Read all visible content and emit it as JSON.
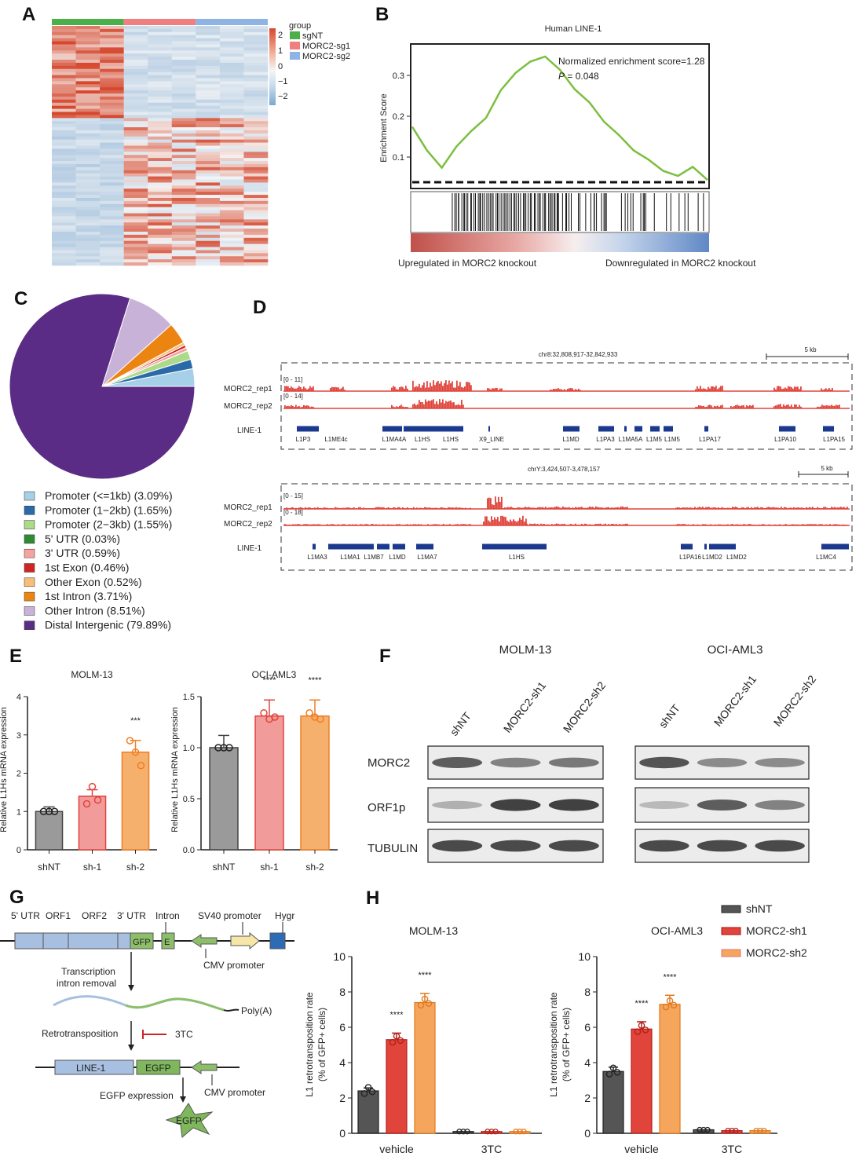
{
  "panel_labels": {
    "A": "A",
    "B": "B",
    "C": "C",
    "D": "D",
    "E": "E",
    "F": "F",
    "G": "G",
    "H": "H"
  },
  "colors": {
    "sgNT": "#4daf4a",
    "sg1": "#f08080",
    "sg2": "#8fb4e3",
    "red": "#e0443b",
    "purple": "#5b2c86",
    "green_line": "#7cbf3f",
    "grey": "#8c8c8c",
    "pink": "#f28b8b",
    "orange": "#f6a55c",
    "black_bar": "#555555",
    "track_blue": "#1b3a8f"
  },
  "panelA": {
    "legend_title": "group",
    "groups": [
      {
        "name": "sgNT",
        "color": "#4daf4a"
      },
      {
        "name": "MORC2-sg1",
        "color": "#f08080"
      },
      {
        "name": "MORC2-sg2",
        "color": "#8fb4e3"
      }
    ],
    "scale_ticks": [
      "2",
      "1",
      "0",
      "−1",
      "−2"
    ]
  },
  "panelB": {
    "title": "Human LINE-1",
    "ylabel": "Enrichment Score",
    "yticks": [
      "0.3",
      "0.2",
      "0.1"
    ],
    "nes_text": "Normalized enrichment score=1.28",
    "p_label": "P",
    "p_value": " = 0.048",
    "left_label": "Upregulated in MORC2 knockout",
    "right_label": "Downregulated in MORC2 knockout"
  },
  "chart_data": [
    {
      "type": "line",
      "panel": "B",
      "title": "Human LINE-1",
      "ylabel": "Enrichment Score",
      "ylim": [
        0.03,
        0.36
      ],
      "x": [
        0,
        0.05,
        0.1,
        0.15,
        0.2,
        0.25,
        0.3,
        0.35,
        0.4,
        0.45,
        0.5,
        0.55,
        0.6,
        0.65,
        0.7,
        0.75,
        0.8,
        0.85,
        0.9,
        0.95,
        1.0
      ],
      "values": [
        0.17,
        0.12,
        0.07,
        0.13,
        0.16,
        0.2,
        0.26,
        0.31,
        0.33,
        0.35,
        0.31,
        0.27,
        0.23,
        0.19,
        0.15,
        0.12,
        0.09,
        0.07,
        0.05,
        0.08,
        0.04
      ]
    },
    {
      "type": "pie",
      "panel": "C",
      "categories": [
        "Promoter (<=1kb)",
        "Promoter (1−2kb)",
        "Promoter (2−3kb)",
        "5' UTR",
        "3' UTR",
        "1st Exon",
        "Other Exon",
        "1st Intron",
        "Other Intron",
        "Distal Intergenic"
      ],
      "values": [
        3.09,
        1.65,
        1.55,
        0.03,
        0.59,
        0.46,
        0.52,
        3.71,
        8.51,
        79.89
      ]
    },
    {
      "type": "bar",
      "panel": "E-MOLM-13",
      "title": "MOLM-13",
      "ylabel": "Relative L1Hs mRNA expression",
      "categories": [
        "shNT",
        "sh-1",
        "sh-2"
      ],
      "values": [
        1.0,
        1.4,
        2.55
      ],
      "ylim": [
        0,
        4
      ],
      "significance": [
        "",
        "",
        "***"
      ]
    },
    {
      "type": "bar",
      "panel": "E-OCI-AML3",
      "title": "OCI-AML3",
      "ylabel": "Relative L1Hs mRNA expression",
      "categories": [
        "shNT",
        "sh-1",
        "sh-2"
      ],
      "values": [
        1.0,
        1.31,
        1.31
      ],
      "ylim": [
        0,
        1.5
      ],
      "significance": [
        "",
        "****",
        "****"
      ]
    },
    {
      "type": "bar",
      "panel": "H-MOLM-13",
      "title": "MOLM-13",
      "ylabel": "L1 retrotransposition rate (% of GFP+ cells)",
      "categories": [
        "vehicle",
        "3TC"
      ],
      "series": [
        {
          "name": "shNT",
          "values": [
            2.4,
            0.1
          ]
        },
        {
          "name": "MORC2-sh1",
          "values": [
            5.3,
            0.1
          ]
        },
        {
          "name": "MORC2-sh2",
          "values": [
            7.4,
            0.1
          ]
        }
      ],
      "ylim": [
        0,
        10
      ],
      "significance": [
        "",
        "****",
        "****"
      ]
    },
    {
      "type": "bar",
      "panel": "H-OCI-AML3",
      "title": "OCI-AML3",
      "ylabel": "L1 retrotransposition rate (% of GFP+ cells)",
      "categories": [
        "vehicle",
        "3TC"
      ],
      "series": [
        {
          "name": "shNT",
          "values": [
            3.5,
            0.2
          ]
        },
        {
          "name": "MORC2-sh1",
          "values": [
            5.9,
            0.15
          ]
        },
        {
          "name": "MORC2-sh2",
          "values": [
            7.3,
            0.15
          ]
        }
      ],
      "ylim": [
        0,
        10
      ],
      "significance": [
        "",
        "****",
        "****"
      ]
    }
  ],
  "panelC_legend": [
    {
      "label": "Promoter (<=1kb) (3.09%)",
      "color": "#a6cfe8"
    },
    {
      "label": "Promoter (1−2kb) (1.65%)",
      "color": "#2b6aa8"
    },
    {
      "label": "Promoter (2−3kb) (1.55%)",
      "color": "#acd98a"
    },
    {
      "label": "5' UTR (0.03%)",
      "color": "#2e8b34"
    },
    {
      "label": "3' UTR (0.59%)",
      "color": "#f5a3a0"
    },
    {
      "label": "1st Exon (0.46%)",
      "color": "#cf2424"
    },
    {
      "label": "Other Exon (0.52%)",
      "color": "#f6be78"
    },
    {
      "label": "1st Intron (3.71%)",
      "color": "#ec8412"
    },
    {
      "label": "Other Intron (8.51%)",
      "color": "#c9b2d8"
    },
    {
      "label": "Distal Intergenic (79.89%)",
      "color": "#5b2c86"
    }
  ],
  "panelD": {
    "locus1": "chr8:32,808,917-32,842,933",
    "scale1": "5 kb",
    "locus2": "chrY:3,424,507-3,478,157",
    "scale2": "5 kb",
    "rep1": "MORC2_rep1",
    "rep2": "MORC2_rep2",
    "track": "LINE-1",
    "range1a": "[0 - 11]",
    "range1b": "[0 - 14]",
    "range2a": "[0 - 15]",
    "range2b": "[0 - 18]",
    "genes1": [
      "L1P3",
      "L1ME4c",
      "L1MA4A",
      "L1HS",
      "L1HS",
      "X9_LINE",
      "L1MD",
      "L1PA3",
      "L1MA5A",
      "L1M5",
      "L1M5",
      "L1PA17",
      "L1PA10",
      "L1PA15"
    ],
    "genes2": [
      "L1MA3",
      "L1MA1",
      "L1MB7",
      "L1MD",
      "L1MA7",
      "L1HS",
      "L1PA16",
      "L1MD2",
      "L1MD2",
      "L1MC4"
    ]
  },
  "panelE": {
    "title1": "MOLM-13",
    "title2": "OCI-AML3",
    "ylabel": "Relative L1Hs mRNA expression",
    "yticks1": [
      "0",
      "1",
      "2",
      "3",
      "4"
    ],
    "yticks2": [
      "0.0",
      "0.5",
      "1.0",
      "1.5"
    ],
    "cats": [
      "shNT",
      "sh-1",
      "sh-2"
    ]
  },
  "panelF": {
    "cell1": "MOLM-13",
    "cell2": "OCI-AML3",
    "lanes": [
      "shNT",
      "MORC2-sh1",
      "MORC2-sh2"
    ],
    "proteins": [
      "MORC2",
      "ORF1p",
      "TUBULIN"
    ]
  },
  "panelG": {
    "labels_top": [
      "5' UTR",
      "ORF1",
      "ORF2",
      "3' UTR",
      "Intron",
      "SV40 promoter",
      "Hygr"
    ],
    "gfp": "GFP",
    "e": "E",
    "cmv1": "CMV promoter",
    "step1_line1": "Transcription",
    "step1_line2": "intron removal",
    "polya": "Poly(A)",
    "step2": "Retrotransposition",
    "inhibitor": "3TC",
    "line1": "LINE-1",
    "egfp": "EGFP",
    "cmv2": "CMV promoter",
    "step3": "EGFP expression",
    "egfp_star": "EGFP"
  },
  "panelH": {
    "title1": "MOLM-13",
    "title2": "OCI-AML3",
    "ylabel1": "L1 retrotransposition rate",
    "ylabel2": "(% of GFP+ cells)",
    "yticks": [
      "0",
      "2",
      "4",
      "6",
      "8",
      "10"
    ],
    "cats": [
      "vehicle",
      "3TC"
    ],
    "legend": [
      "shNT",
      "MORC2-sh1",
      "MORC2-sh2"
    ]
  }
}
